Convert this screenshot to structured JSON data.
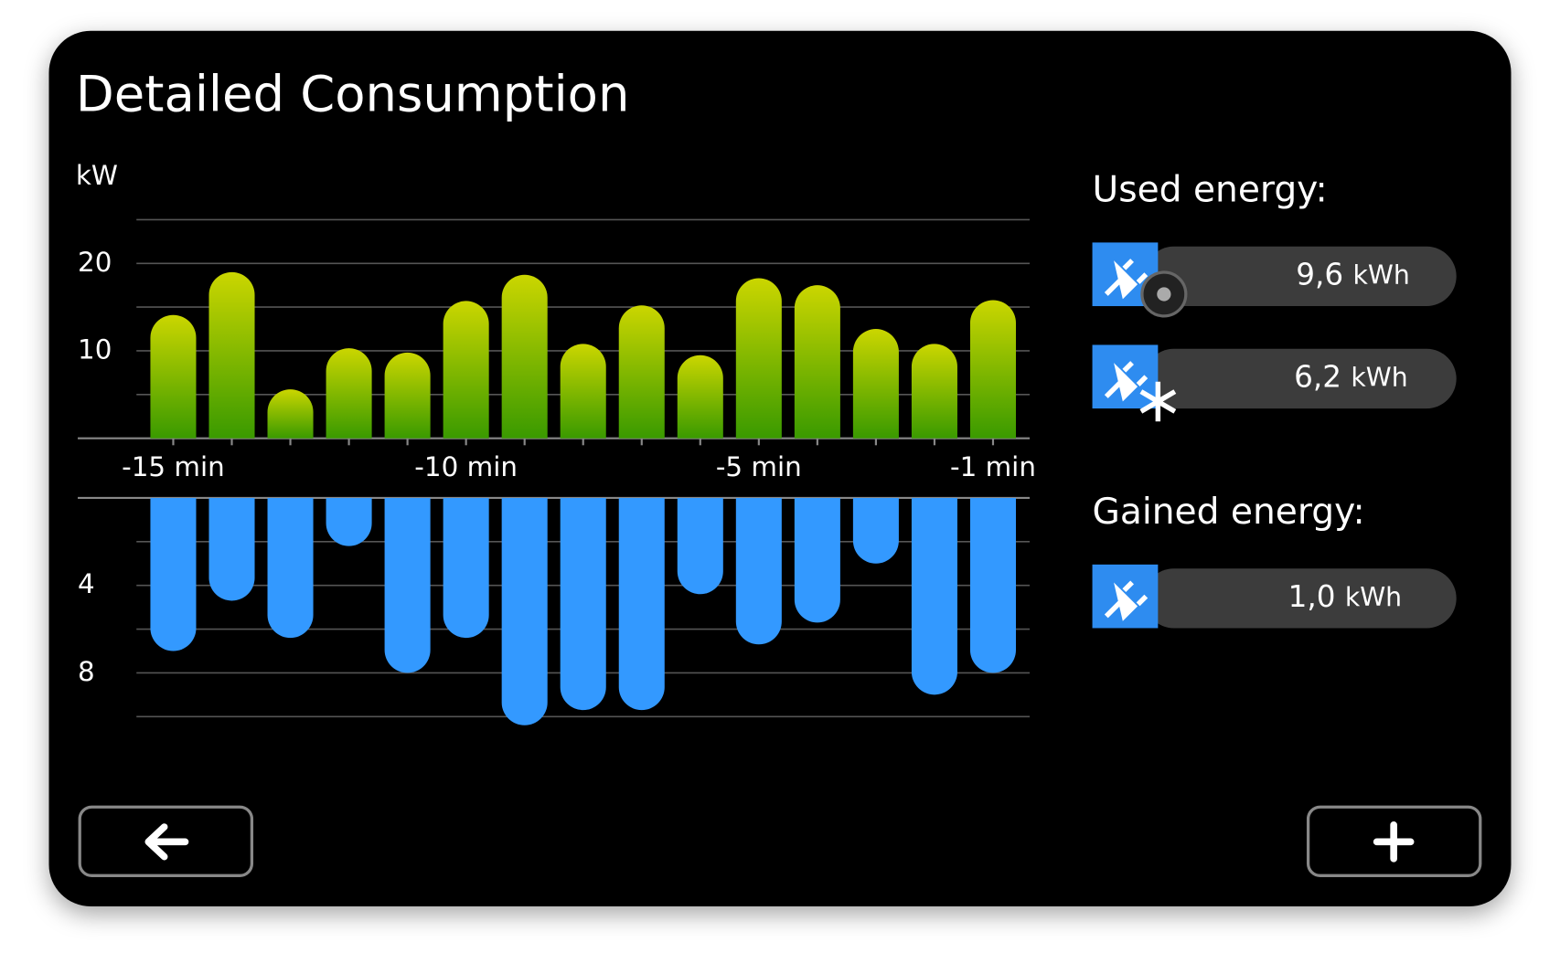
{
  "title": "Detailed Consumption",
  "chart_data": [
    {
      "type": "bar",
      "y_label": "kW",
      "categories": [
        "-15 min",
        null,
        null,
        null,
        null,
        "-10 min",
        null,
        null,
        null,
        null,
        "-5 min",
        null,
        null,
        null,
        "-1 min"
      ],
      "values": [
        14.1,
        19,
        5.6,
        10.3,
        9.8,
        15.7,
        18.7,
        10.8,
        15.2,
        9.5,
        18.3,
        17.5,
        12.5,
        10.8,
        15.8
      ],
      "ylim": [
        0,
        25
      ],
      "yticks": [
        10,
        20
      ],
      "minor_yticks": [
        5,
        15,
        25
      ],
      "color": [
        "#cbd600",
        "#3a9a00"
      ],
      "grid": true
    },
    {
      "type": "bar",
      "inverted": true,
      "categories": [
        null,
        null,
        null,
        null,
        null,
        null,
        null,
        null,
        null,
        null,
        null,
        null,
        null,
        null,
        null
      ],
      "values": [
        7.0,
        4.7,
        6.4,
        2.2,
        8.0,
        6.4,
        10.4,
        9.7,
        9.7,
        4.4,
        6.7,
        5.7,
        3.0,
        9.0,
        8.0
      ],
      "ylim": [
        0,
        10
      ],
      "yticks": [
        4,
        8
      ],
      "minor_yticks": [
        2,
        6,
        10
      ],
      "color": [
        "#3399ff",
        "#3399ff"
      ],
      "grid": true
    }
  ],
  "used_energy": {
    "label": "Used energy:",
    "items": [
      {
        "value": "9,6",
        "unit": "kWh"
      },
      {
        "value": "6,2",
        "unit": "kWh"
      }
    ]
  },
  "gained_energy": {
    "label": "Gained energy:",
    "items": [
      {
        "value": "1,0",
        "unit": "kWh"
      }
    ]
  }
}
